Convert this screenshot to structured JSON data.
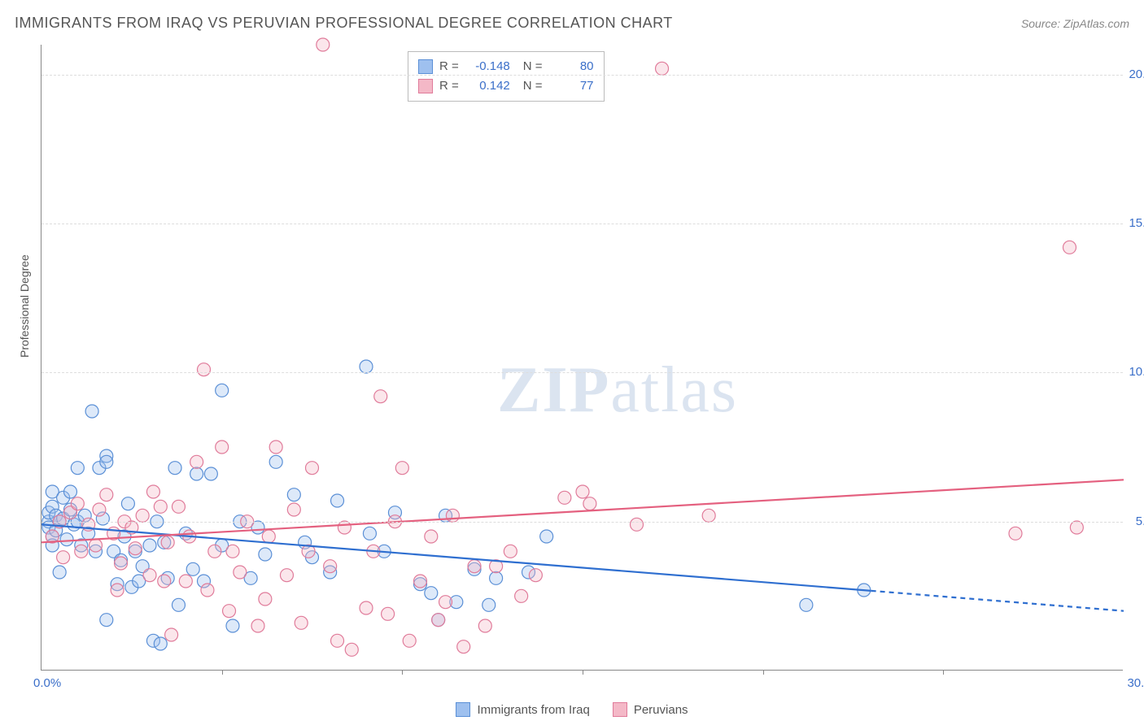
{
  "header": {
    "title": "IMMIGRANTS FROM IRAQ VS PERUVIAN PROFESSIONAL DEGREE CORRELATION CHART",
    "source_prefix": "Source: ",
    "source_name": "ZipAtlas.com"
  },
  "watermark": {
    "zip": "ZIP",
    "atlas": "atlas"
  },
  "chart": {
    "type": "scatter",
    "y_axis_label": "Professional Degree",
    "x_range": [
      0,
      30
    ],
    "y_range": [
      0,
      21
    ],
    "x_ticks_minor": [
      5,
      10,
      15,
      20,
      25
    ],
    "x_tick_origin": "0.0%",
    "x_tick_max": "30.0%",
    "y_ticks": [
      {
        "v": 5,
        "label": "5.0%"
      },
      {
        "v": 10,
        "label": "10.0%"
      },
      {
        "v": 15,
        "label": "15.0%"
      },
      {
        "v": 20,
        "label": "20.0%"
      }
    ],
    "background_color": "#ffffff",
    "grid_color": "#dddddd",
    "marker_radius": 8,
    "marker_fill_opacity": 0.35,
    "marker_stroke_width": 1.2,
    "series": [
      {
        "name": "Immigrants from Iraq",
        "color_fill": "#9ec0ef",
        "color_stroke": "#5a8fd6",
        "R": "-0.148",
        "N": "80",
        "trend": {
          "y_at_x0": 4.9,
          "y_at_x30": 2.0,
          "solid_until_x": 23,
          "line_color": "#2f6fd0",
          "line_width": 2.2
        },
        "points": [
          [
            0.2,
            5.0
          ],
          [
            0.2,
            4.8
          ],
          [
            0.2,
            5.3
          ],
          [
            0.3,
            6.0
          ],
          [
            0.3,
            4.5
          ],
          [
            0.3,
            5.5
          ],
          [
            0.3,
            4.2
          ],
          [
            0.4,
            5.2
          ],
          [
            0.4,
            4.7
          ],
          [
            0.5,
            5.0
          ],
          [
            0.5,
            3.3
          ],
          [
            0.6,
            5.8
          ],
          [
            0.6,
            5.1
          ],
          [
            0.7,
            4.4
          ],
          [
            0.8,
            5.4
          ],
          [
            0.8,
            6.0
          ],
          [
            0.9,
            4.9
          ],
          [
            1.0,
            5.0
          ],
          [
            1.0,
            6.8
          ],
          [
            1.1,
            4.2
          ],
          [
            1.2,
            5.2
          ],
          [
            1.3,
            4.6
          ],
          [
            1.4,
            8.7
          ],
          [
            1.5,
            4.0
          ],
          [
            1.6,
            6.8
          ],
          [
            1.7,
            5.1
          ],
          [
            1.8,
            7.2
          ],
          [
            1.8,
            7.0
          ],
          [
            1.8,
            1.7
          ],
          [
            2.0,
            4.0
          ],
          [
            2.1,
            2.9
          ],
          [
            2.2,
            3.7
          ],
          [
            2.3,
            4.5
          ],
          [
            2.4,
            5.6
          ],
          [
            2.5,
            2.8
          ],
          [
            2.6,
            4.0
          ],
          [
            2.7,
            3.0
          ],
          [
            2.8,
            3.5
          ],
          [
            3.0,
            4.2
          ],
          [
            3.1,
            1.0
          ],
          [
            3.2,
            5.0
          ],
          [
            3.3,
            0.9
          ],
          [
            3.4,
            4.3
          ],
          [
            3.5,
            3.1
          ],
          [
            3.7,
            6.8
          ],
          [
            3.8,
            2.2
          ],
          [
            4.0,
            4.6
          ],
          [
            4.2,
            3.4
          ],
          [
            4.3,
            6.6
          ],
          [
            4.5,
            3.0
          ],
          [
            4.7,
            6.6
          ],
          [
            5.0,
            4.2
          ],
          [
            5.0,
            9.4
          ],
          [
            5.3,
            1.5
          ],
          [
            5.5,
            5.0
          ],
          [
            5.8,
            3.1
          ],
          [
            6.0,
            4.8
          ],
          [
            6.2,
            3.9
          ],
          [
            6.5,
            7.0
          ],
          [
            7.0,
            5.9
          ],
          [
            7.3,
            4.3
          ],
          [
            7.5,
            3.8
          ],
          [
            8.0,
            3.3
          ],
          [
            8.2,
            5.7
          ],
          [
            9.0,
            10.2
          ],
          [
            9.1,
            4.6
          ],
          [
            9.5,
            4.0
          ],
          [
            9.8,
            5.3
          ],
          [
            10.5,
            2.9
          ],
          [
            10.8,
            2.6
          ],
          [
            11.0,
            1.7
          ],
          [
            11.2,
            5.2
          ],
          [
            11.5,
            2.3
          ],
          [
            12.0,
            3.4
          ],
          [
            12.4,
            2.2
          ],
          [
            12.6,
            3.1
          ],
          [
            13.5,
            3.3
          ],
          [
            14.0,
            4.5
          ],
          [
            21.2,
            2.2
          ],
          [
            22.8,
            2.7
          ]
        ]
      },
      {
        "name": "Peruvians",
        "color_fill": "#f4b8c7",
        "color_stroke": "#e07b9a",
        "R": "0.142",
        "N": "77",
        "trend": {
          "y_at_x0": 4.3,
          "y_at_x30": 6.4,
          "solid_until_x": 30,
          "line_color": "#e4607f",
          "line_width": 2.2
        },
        "points": [
          [
            0.3,
            4.5
          ],
          [
            0.5,
            5.0
          ],
          [
            0.6,
            3.8
          ],
          [
            0.8,
            5.3
          ],
          [
            1.0,
            5.6
          ],
          [
            1.1,
            4.0
          ],
          [
            1.3,
            4.9
          ],
          [
            1.5,
            4.2
          ],
          [
            1.6,
            5.4
          ],
          [
            1.8,
            5.9
          ],
          [
            2.0,
            4.6
          ],
          [
            2.1,
            2.7
          ],
          [
            2.2,
            3.6
          ],
          [
            2.3,
            5.0
          ],
          [
            2.5,
            4.8
          ],
          [
            2.6,
            4.1
          ],
          [
            2.8,
            5.2
          ],
          [
            3.0,
            3.2
          ],
          [
            3.1,
            6.0
          ],
          [
            3.3,
            5.5
          ],
          [
            3.4,
            3.0
          ],
          [
            3.5,
            4.3
          ],
          [
            3.6,
            1.2
          ],
          [
            3.8,
            5.5
          ],
          [
            4.0,
            3.0
          ],
          [
            4.1,
            4.5
          ],
          [
            4.3,
            7.0
          ],
          [
            4.5,
            10.1
          ],
          [
            4.6,
            2.7
          ],
          [
            4.8,
            4.0
          ],
          [
            5.0,
            7.5
          ],
          [
            5.2,
            2.0
          ],
          [
            5.3,
            4.0
          ],
          [
            5.5,
            3.3
          ],
          [
            5.7,
            5.0
          ],
          [
            6.0,
            1.5
          ],
          [
            6.2,
            2.4
          ],
          [
            6.3,
            4.5
          ],
          [
            6.5,
            7.5
          ],
          [
            6.8,
            3.2
          ],
          [
            7.0,
            5.4
          ],
          [
            7.2,
            1.6
          ],
          [
            7.4,
            4.0
          ],
          [
            7.5,
            6.8
          ],
          [
            7.8,
            21.0
          ],
          [
            8.0,
            3.5
          ],
          [
            8.2,
            1.0
          ],
          [
            8.4,
            4.8
          ],
          [
            8.6,
            0.7
          ],
          [
            9.0,
            2.1
          ],
          [
            9.2,
            4.0
          ],
          [
            9.4,
            9.2
          ],
          [
            9.6,
            1.9
          ],
          [
            9.8,
            5.0
          ],
          [
            10.0,
            6.8
          ],
          [
            10.2,
            1.0
          ],
          [
            10.5,
            3.0
          ],
          [
            10.8,
            4.5
          ],
          [
            11.0,
            1.7
          ],
          [
            11.2,
            2.3
          ],
          [
            11.4,
            5.2
          ],
          [
            11.7,
            0.8
          ],
          [
            12.0,
            3.5
          ],
          [
            12.3,
            1.5
          ],
          [
            12.6,
            3.5
          ],
          [
            13.0,
            4.0
          ],
          [
            13.3,
            2.5
          ],
          [
            13.7,
            3.2
          ],
          [
            14.5,
            5.8
          ],
          [
            15.0,
            6.0
          ],
          [
            15.2,
            5.6
          ],
          [
            16.5,
            4.9
          ],
          [
            17.2,
            20.2
          ],
          [
            18.5,
            5.2
          ],
          [
            27.0,
            4.6
          ],
          [
            28.5,
            14.2
          ],
          [
            28.7,
            4.8
          ]
        ]
      }
    ]
  },
  "legend_bottom": {
    "items": [
      "Immigrants from Iraq",
      "Peruvians"
    ]
  }
}
